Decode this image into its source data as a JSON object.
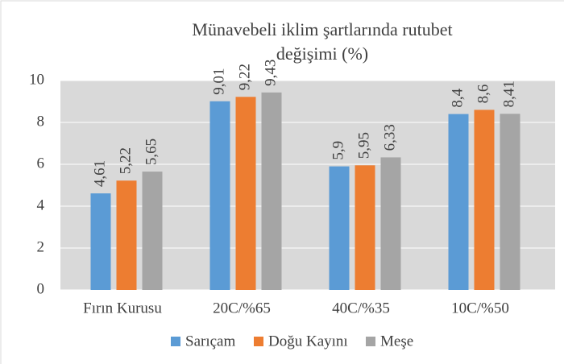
{
  "chart_data": {
    "type": "bar",
    "title": "Münavebeli iklim şartlarında rutubet değişimi (%)",
    "categories": [
      "Fırın Kurusu",
      "20C/%65",
      "40C/%35",
      "10C/%50"
    ],
    "series": [
      {
        "name": "Sarıçam",
        "color": "#5b9bd5",
        "values": [
          4.61,
          9.01,
          5.9,
          8.4
        ],
        "value_labels": [
          "4,61",
          "9,01",
          "5,9",
          "8,4"
        ]
      },
      {
        "name": "Doğu Kayını",
        "color": "#ed7d31",
        "values": [
          5.22,
          9.22,
          5.95,
          8.6
        ],
        "value_labels": [
          "5,22",
          "9,22",
          "5,95",
          "8,6"
        ]
      },
      {
        "name": "Meşe",
        "color": "#a5a5a5",
        "values": [
          5.65,
          9.43,
          6.33,
          8.41
        ],
        "value_labels": [
          "5,65",
          "9,43",
          "6,33",
          "8,41"
        ]
      }
    ],
    "ylim": [
      0,
      10
    ],
    "yticks": [
      0,
      2,
      4,
      6,
      8,
      10
    ],
    "grid": true,
    "legend": "bottom"
  }
}
